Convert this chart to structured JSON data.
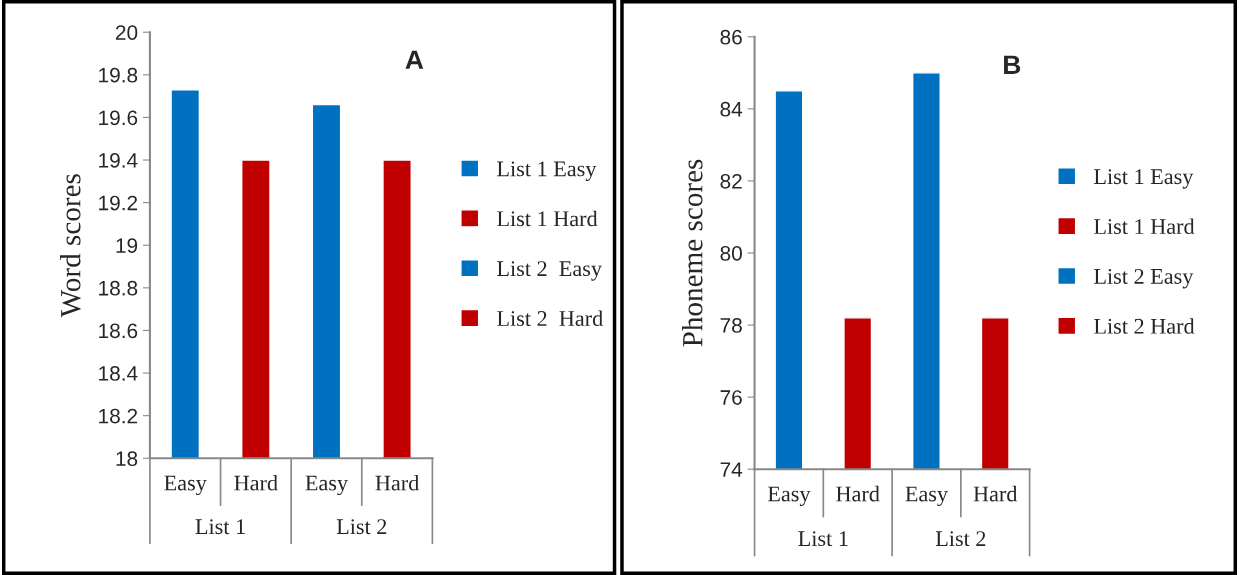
{
  "chart_data": [
    {
      "type": "bar",
      "ylabel": "Word scores",
      "categories": [
        "Easy",
        "Hard",
        "Easy",
        "Hard"
      ],
      "series": [
        {
          "name": "List 1 Easy",
          "color": "#0070c0",
          "values": [
            19.73,
            null,
            null,
            null
          ]
        },
        {
          "name": "List 1 Hard",
          "color": "#c00000",
          "values": [
            null,
            19.4,
            null,
            null
          ]
        },
        {
          "name": "List 2  Easy",
          "color": "#0070c0",
          "values": [
            null,
            null,
            19.66,
            null
          ]
        },
        {
          "name": "List 2  Hard",
          "color": "#c00000",
          "values": [
            null,
            null,
            null,
            19.4
          ]
        }
      ],
      "ylim": [
        18,
        20
      ],
      "yticks": [
        18,
        18.2,
        18.4,
        18.6,
        18.8,
        19,
        19.2,
        19.4,
        19.6,
        19.8,
        20
      ],
      "annotations": [
        "A",
        "List 1",
        "List 2"
      ],
      "legend": "right",
      "grid": false
    },
    {
      "type": "bar",
      "ylabel": "Phoneme scores",
      "categories": [
        "Easy",
        "Hard",
        "Easy",
        "Hard"
      ],
      "series": [
        {
          "name": "List 1 Easy",
          "color": "#0070c0",
          "values": [
            84.5,
            null,
            null,
            null
          ]
        },
        {
          "name": "List 1 Hard",
          "color": "#c00000",
          "values": [
            null,
            78.2,
            null,
            null
          ]
        },
        {
          "name": "List 2 Easy",
          "color": "#0070c0",
          "values": [
            null,
            null,
            85,
            null
          ]
        },
        {
          "name": "List 2 Hard",
          "color": "#c00000",
          "values": [
            null,
            null,
            null,
            78.2
          ]
        }
      ],
      "ylim": [
        74,
        86
      ],
      "yticks": [
        74,
        76,
        78,
        80,
        82,
        84,
        86
      ],
      "annotations": [
        "B",
        "List 1",
        "List 2"
      ],
      "legend": "right",
      "grid": false
    }
  ]
}
